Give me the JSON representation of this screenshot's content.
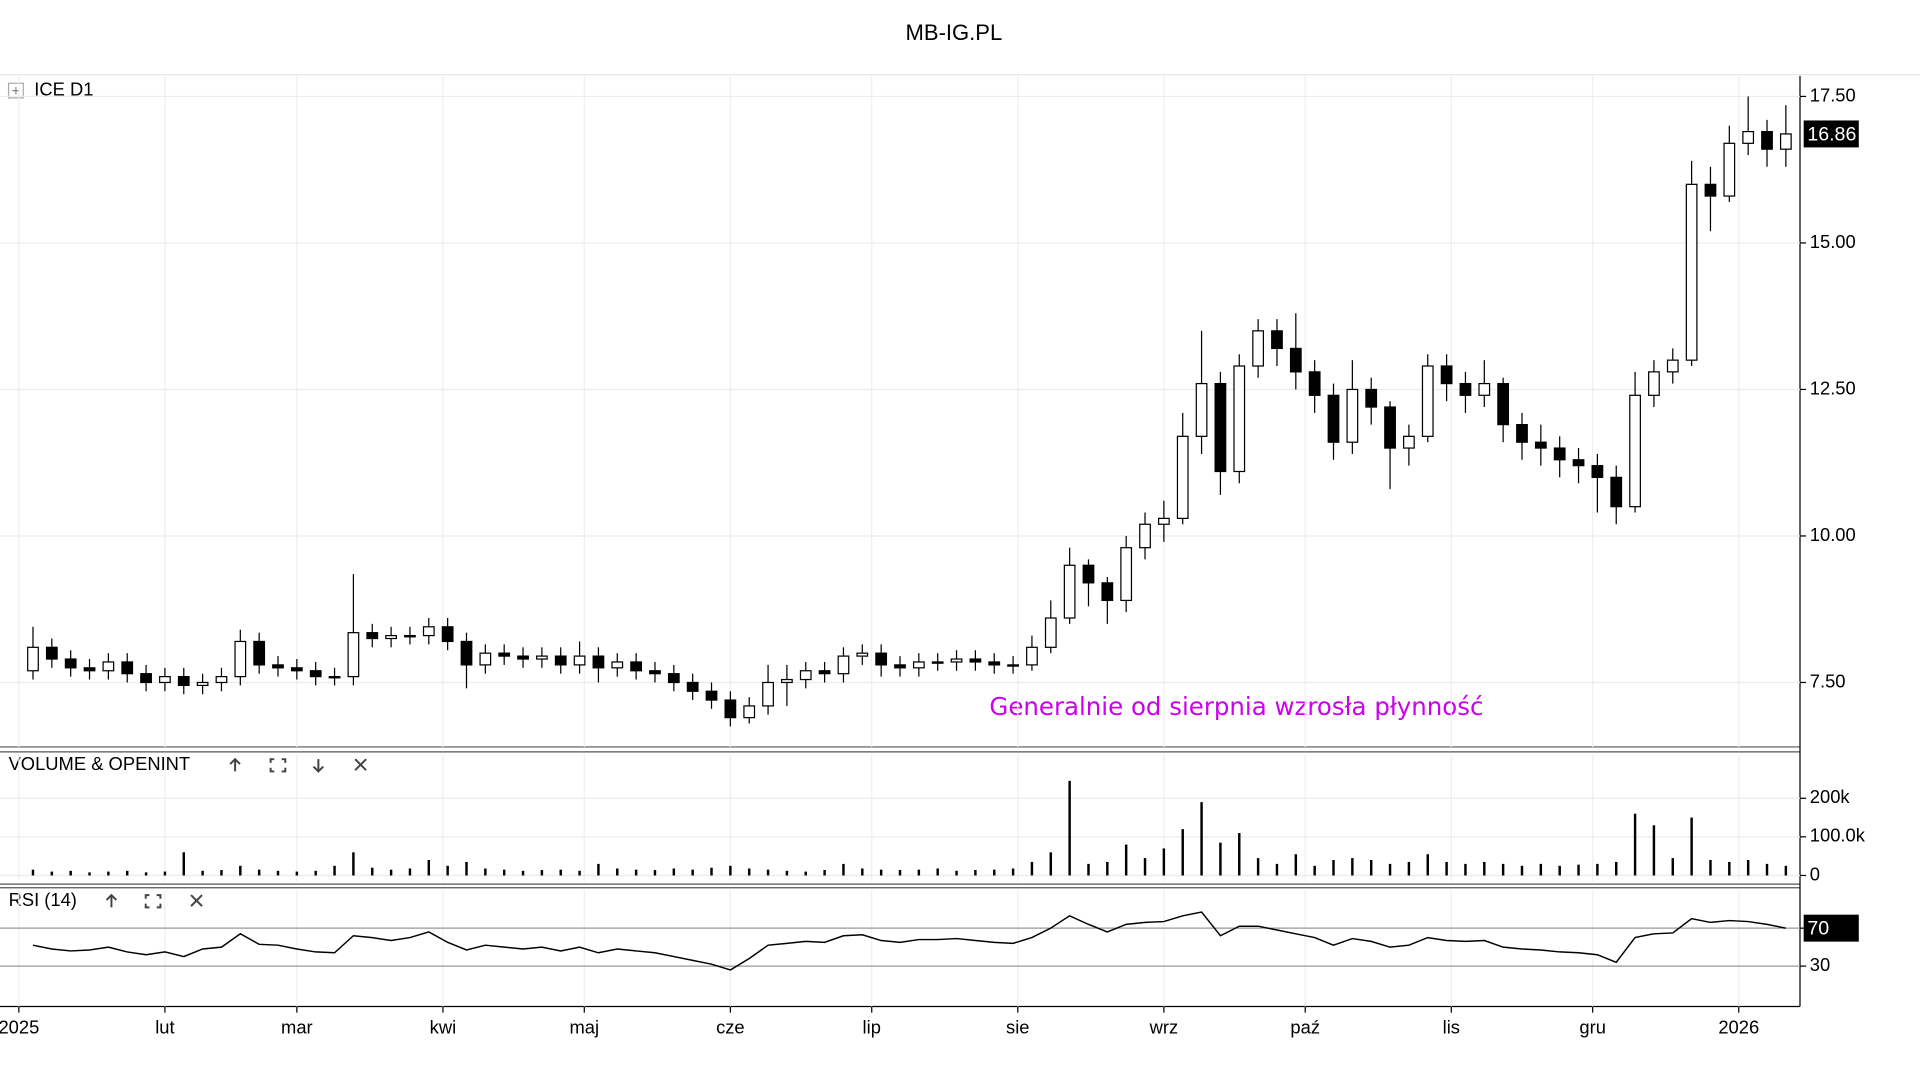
{
  "title": "MB-IG.PL",
  "chart_data": [
    {
      "type": "candlestick",
      "title": "ICE D1",
      "annotations": [
        {
          "text": "Generalnie od sierpnia wzrosła płynność",
          "color": "#cc00ee"
        }
      ],
      "up_color": "#ffffff",
      "down_color": "#000000",
      "grid": true,
      "xlim": [
        -4,
        378
      ],
      "xticks": [
        {
          "value": 0,
          "label": "2025"
        },
        {
          "value": 31,
          "label": "lut"
        },
        {
          "value": 59,
          "label": "mar"
        },
        {
          "value": 90,
          "label": "kwi"
        },
        {
          "value": 120,
          "label": "maj"
        },
        {
          "value": 151,
          "label": "cze"
        },
        {
          "value": 181,
          "label": "lip"
        },
        {
          "value": 212,
          "label": "sie"
        },
        {
          "value": 243,
          "label": "wrz"
        },
        {
          "value": 273,
          "label": "paź"
        },
        {
          "value": 304,
          "label": "lis"
        },
        {
          "value": 334,
          "label": "gru"
        },
        {
          "value": 365,
          "label": "2026"
        }
      ],
      "ylim": [
        6.4,
        17.85
      ],
      "yticks": [
        {
          "value": 7.5,
          "label": "7.50"
        },
        {
          "value": 10,
          "label": "10.00"
        },
        {
          "value": 12.5,
          "label": "12.50"
        },
        {
          "value": 15,
          "label": "15.00"
        },
        {
          "value": 17.5,
          "label": "17.50"
        }
      ],
      "x": [
        3,
        7,
        11,
        15,
        19,
        23,
        27,
        31,
        35,
        39,
        43,
        47,
        51,
        55,
        59,
        63,
        67,
        71,
        75,
        79,
        83,
        87,
        91,
        95,
        99,
        103,
        107,
        111,
        115,
        119,
        123,
        127,
        131,
        135,
        139,
        143,
        147,
        151,
        155,
        159,
        163,
        167,
        171,
        175,
        179,
        183,
        187,
        191,
        195,
        199,
        203,
        207,
        211,
        215,
        219,
        223,
        227,
        231,
        235,
        239,
        243,
        247,
        251,
        255,
        259,
        263,
        267,
        271,
        275,
        279,
        283,
        287,
        291,
        295,
        299,
        303,
        307,
        311,
        315,
        319,
        323,
        327,
        331,
        335,
        339,
        343,
        347,
        351,
        355,
        359,
        363,
        367,
        371,
        375
      ],
      "open": [
        7.7,
        8.1,
        7.9,
        7.75,
        7.7,
        7.85,
        7.65,
        7.5,
        7.6,
        7.45,
        7.5,
        7.6,
        8.2,
        7.8,
        7.75,
        7.7,
        7.6,
        7.6,
        8.35,
        8.25,
        8.3,
        8.3,
        8.45,
        8.2,
        7.8,
        8.0,
        7.95,
        7.9,
        7.95,
        7.8,
        7.95,
        7.75,
        7.85,
        7.7,
        7.65,
        7.5,
        7.35,
        7.2,
        6.9,
        7.1,
        7.5,
        7.55,
        7.7,
        7.65,
        7.95,
        8.0,
        7.8,
        7.75,
        7.85,
        7.85,
        7.9,
        7.85,
        7.8,
        7.8,
        8.1,
        8.6,
        9.5,
        9.2,
        8.9,
        9.8,
        10.2,
        10.3,
        11.7,
        12.6,
        11.1,
        12.9,
        13.5,
        13.2,
        12.8,
        12.4,
        11.6,
        12.5,
        12.2,
        11.5,
        11.7,
        12.9,
        12.6,
        12.4,
        12.6,
        11.9,
        11.6,
        11.5,
        11.3,
        11.2,
        11.0,
        10.5,
        12.4,
        12.8,
        13.0,
        16.0,
        15.8,
        16.7,
        16.9,
        16.6
      ],
      "high": [
        8.45,
        8.25,
        8.05,
        7.9,
        8.0,
        8.0,
        7.8,
        7.75,
        7.75,
        7.65,
        7.75,
        8.4,
        8.35,
        7.95,
        7.9,
        7.85,
        7.75,
        9.35,
        8.5,
        8.45,
        8.45,
        8.6,
        8.6,
        8.35,
        8.15,
        8.15,
        8.1,
        8.1,
        8.1,
        8.2,
        8.1,
        8.0,
        8.0,
        7.85,
        7.8,
        7.65,
        7.5,
        7.35,
        7.25,
        7.8,
        7.8,
        7.85,
        7.85,
        8.1,
        8.15,
        8.15,
        7.95,
        8.0,
        8.0,
        8.05,
        8.05,
        8.0,
        7.95,
        8.3,
        8.9,
        9.8,
        9.6,
        9.3,
        10.0,
        10.4,
        10.6,
        12.1,
        13.5,
        12.8,
        13.1,
        13.7,
        13.7,
        13.8,
        13.0,
        12.6,
        13.0,
        12.7,
        12.3,
        11.9,
        13.1,
        13.1,
        12.8,
        13.0,
        12.7,
        12.1,
        11.9,
        11.7,
        11.5,
        11.4,
        11.2,
        12.8,
        13.0,
        13.2,
        16.4,
        16.3,
        17.0,
        17.5,
        17.1,
        17.35
      ],
      "low": [
        7.55,
        7.75,
        7.6,
        7.55,
        7.55,
        7.5,
        7.35,
        7.35,
        7.3,
        7.3,
        7.35,
        7.45,
        7.65,
        7.6,
        7.55,
        7.45,
        7.45,
        7.45,
        8.1,
        8.1,
        8.15,
        8.15,
        8.05,
        7.4,
        7.65,
        7.8,
        7.75,
        7.75,
        7.65,
        7.65,
        7.5,
        7.6,
        7.55,
        7.5,
        7.35,
        7.2,
        7.05,
        6.75,
        6.8,
        6.95,
        7.1,
        7.4,
        7.5,
        7.5,
        7.8,
        7.6,
        7.6,
        7.6,
        7.7,
        7.7,
        7.7,
        7.65,
        7.65,
        7.7,
        8.0,
        8.5,
        8.8,
        8.5,
        8.7,
        9.6,
        9.9,
        10.2,
        11.4,
        10.7,
        10.9,
        12.7,
        12.9,
        12.5,
        12.1,
        11.3,
        11.4,
        11.9,
        10.8,
        11.2,
        11.6,
        12.3,
        12.1,
        12.2,
        11.6,
        11.3,
        11.2,
        11.0,
        10.9,
        10.4,
        10.2,
        10.4,
        12.2,
        12.6,
        12.9,
        15.2,
        15.7,
        16.5,
        16.3,
        16.3
      ],
      "close": [
        8.1,
        7.9,
        7.75,
        7.7,
        7.85,
        7.65,
        7.5,
        7.6,
        7.45,
        7.5,
        7.6,
        8.2,
        7.8,
        7.75,
        7.7,
        7.6,
        7.6,
        8.35,
        8.25,
        8.3,
        8.3,
        8.45,
        8.2,
        7.8,
        8.0,
        7.95,
        7.9,
        7.95,
        7.8,
        7.95,
        7.75,
        7.85,
        7.7,
        7.65,
        7.5,
        7.35,
        7.2,
        6.9,
        7.1,
        7.5,
        7.55,
        7.7,
        7.65,
        7.95,
        8.0,
        7.8,
        7.75,
        7.85,
        7.85,
        7.9,
        7.85,
        7.8,
        7.8,
        8.1,
        8.6,
        9.5,
        9.2,
        8.9,
        9.8,
        10.2,
        10.3,
        11.7,
        12.6,
        11.1,
        12.9,
        13.5,
        13.2,
        12.8,
        12.4,
        11.6,
        12.5,
        12.2,
        11.5,
        11.7,
        12.9,
        12.6,
        12.4,
        12.6,
        11.9,
        11.6,
        11.5,
        11.3,
        11.2,
        11.0,
        10.5,
        12.4,
        12.8,
        13.0,
        16.0,
        15.8,
        16.7,
        16.9,
        16.6,
        16.86
      ]
    },
    {
      "type": "bar",
      "title": "VOLUME & OPENINT",
      "color": "#000000",
      "ylim": [
        -16000,
        314000
      ],
      "yticks": [
        0,
        {
          "value": 100000,
          "label": "100.0k"
        },
        {
          "value": 200000,
          "label": "200k"
        }
      ],
      "x": [
        3,
        7,
        11,
        15,
        19,
        23,
        27,
        31,
        35,
        39,
        43,
        47,
        51,
        55,
        59,
        63,
        67,
        71,
        75,
        79,
        83,
        87,
        91,
        95,
        99,
        103,
        107,
        111,
        115,
        119,
        123,
        127,
        131,
        135,
        139,
        143,
        147,
        151,
        155,
        159,
        163,
        167,
        171,
        175,
        179,
        183,
        187,
        191,
        195,
        199,
        203,
        207,
        211,
        215,
        219,
        223,
        227,
        231,
        235,
        239,
        243,
        247,
        251,
        255,
        259,
        263,
        267,
        271,
        275,
        279,
        283,
        287,
        291,
        295,
        299,
        303,
        307,
        311,
        315,
        319,
        323,
        327,
        331,
        335,
        339,
        343,
        347,
        351,
        355,
        359,
        363,
        367,
        371,
        375
      ],
      "values": [
        15000,
        10000,
        12000,
        8000,
        10000,
        12000,
        8000,
        10000,
        60000,
        12000,
        14000,
        25000,
        15000,
        12000,
        10000,
        12000,
        25000,
        60000,
        20000,
        15000,
        18000,
        40000,
        25000,
        35000,
        18000,
        15000,
        12000,
        14000,
        15000,
        12000,
        30000,
        18000,
        15000,
        14000,
        18000,
        15000,
        20000,
        25000,
        18000,
        15000,
        12000,
        10000,
        14000,
        30000,
        18000,
        15000,
        14000,
        15000,
        18000,
        12000,
        14000,
        15000,
        18000,
        35000,
        60000,
        245000,
        30000,
        35000,
        80000,
        45000,
        70000,
        120000,
        190000,
        85000,
        110000,
        45000,
        30000,
        55000,
        25000,
        40000,
        45000,
        40000,
        30000,
        35000,
        55000,
        35000,
        30000,
        35000,
        30000,
        25000,
        30000,
        25000,
        28000,
        30000,
        35000,
        160000,
        130000,
        45000,
        150000,
        40000,
        35000,
        40000,
        30000,
        25000
      ]
    },
    {
      "type": "line",
      "title": "RSI (14)",
      "color": "#000000",
      "ylim": [
        -12.6,
        110
      ],
      "yticks": [
        30,
        70
      ],
      "x": [
        3,
        7,
        11,
        15,
        19,
        23,
        27,
        31,
        35,
        39,
        43,
        47,
        51,
        55,
        59,
        63,
        67,
        71,
        75,
        79,
        83,
        87,
        91,
        95,
        99,
        103,
        107,
        111,
        115,
        119,
        123,
        127,
        131,
        135,
        139,
        143,
        147,
        151,
        155,
        159,
        163,
        167,
        171,
        175,
        179,
        183,
        187,
        191,
        195,
        199,
        203,
        207,
        211,
        215,
        219,
        223,
        227,
        231,
        235,
        239,
        243,
        247,
        251,
        255,
        259,
        263,
        267,
        271,
        275,
        279,
        283,
        287,
        291,
        295,
        299,
        303,
        307,
        311,
        315,
        319,
        323,
        327,
        331,
        335,
        339,
        343,
        347,
        351,
        355,
        359,
        363,
        367,
        371,
        375
      ],
      "values": [
        52,
        48,
        46,
        47,
        50,
        45,
        42,
        45,
        40,
        48,
        50,
        64,
        53,
        52,
        48,
        45,
        44,
        62,
        60,
        57,
        60,
        66,
        55,
        47,
        52,
        50,
        48,
        50,
        46,
        50,
        44,
        48,
        46,
        44,
        40,
        36,
        32,
        26,
        38,
        52,
        54,
        56,
        55,
        62,
        63,
        57,
        55,
        58,
        58,
        59,
        57,
        55,
        54,
        60,
        70,
        83,
        74,
        66,
        74,
        76,
        77,
        83,
        87,
        62,
        72,
        72,
        68,
        64,
        60,
        52,
        59,
        56,
        50,
        52,
        60,
        57,
        56,
        57,
        50,
        48,
        47,
        45,
        44,
        42,
        34,
        60,
        64,
        65,
        80,
        76,
        78,
        77,
        74,
        70
      ]
    }
  ]
}
